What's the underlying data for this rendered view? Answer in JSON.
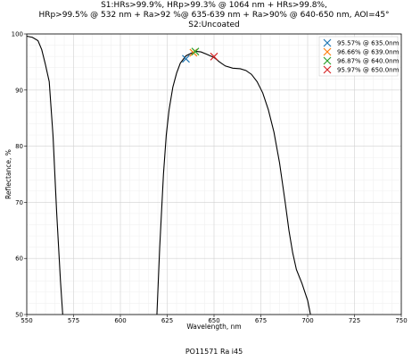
{
  "chart_data": {
    "type": "line",
    "title": [
      "S1:HRs>99.9%, HRp>99.3% @ 1064 nm + HRs>99.8%,",
      "HRp>99.5% @ 532 nm + Ra>92 %@ 635-639 nm + Ra>90% @ 640-650 nm, AOI=45°",
      "S2:Uncoated"
    ],
    "xlabel": "Wavelength, nm",
    "ylabel": "Reflectance, %",
    "footer": "PO11571 Ra i45",
    "xlim": [
      550,
      750
    ],
    "ylim": [
      50,
      100
    ],
    "xticks": [
      550,
      575,
      600,
      625,
      650,
      675,
      700,
      725,
      750
    ],
    "yticks": [
      50,
      60,
      70,
      80,
      90,
      100
    ],
    "grid": true,
    "minor_grid": true,
    "legend": "upper right",
    "curve": {
      "color": "#000000",
      "x": [
        550,
        553,
        556,
        558,
        560,
        562,
        564,
        566,
        568,
        569.2,
        null,
        619.5,
        621,
        623,
        624.5,
        626,
        628,
        630,
        632,
        635,
        638,
        640,
        643,
        646,
        650,
        653,
        656,
        660,
        664,
        667,
        670,
        673,
        676,
        679,
        682,
        685,
        688,
        690,
        692,
        694,
        697,
        700,
        701.5
      ],
      "values": [
        99.6,
        99.4,
        98.8,
        97.2,
        94.5,
        91.5,
        82,
        68,
        56,
        50,
        null,
        50,
        62,
        75,
        82,
        86.5,
        90.5,
        93,
        94.8,
        96.1,
        96.6,
        96.9,
        96.8,
        96.4,
        95.8,
        95,
        94.3,
        93.9,
        93.8,
        93.5,
        92.8,
        91.5,
        89.5,
        86.5,
        82.5,
        77,
        70,
        65,
        61,
        58,
        55.5,
        52.5,
        50
      ]
    },
    "series": [
      {
        "name": "95.57% @ 635.0nm",
        "color": "#1f77b4",
        "x": [
          635
        ],
        "values": [
          95.57
        ]
      },
      {
        "name": "96.66% @ 639.0nm",
        "color": "#ff7f0e",
        "x": [
          639
        ],
        "values": [
          96.66
        ]
      },
      {
        "name": "96.87% @ 640.0nm",
        "color": "#2ca02c",
        "x": [
          640
        ],
        "values": [
          96.87
        ]
      },
      {
        "name": "95.97% @ 650.0nm",
        "color": "#d62728",
        "x": [
          650
        ],
        "values": [
          95.97
        ]
      }
    ]
  }
}
